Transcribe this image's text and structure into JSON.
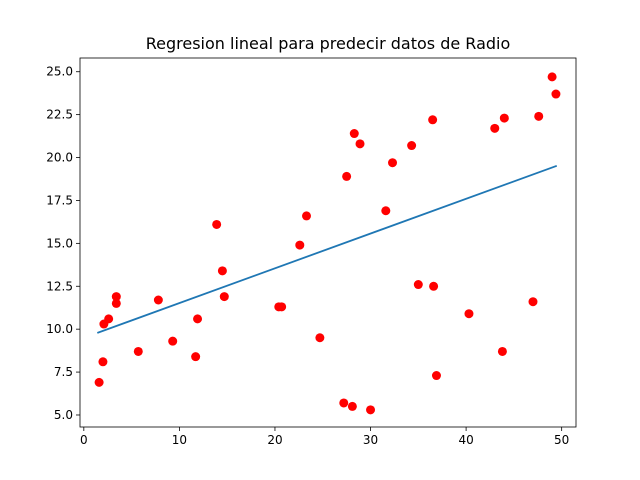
{
  "chart_data": {
    "type": "scatter",
    "title": "Regresion lineal para predecir datos de Radio",
    "xlabel": "",
    "ylabel": "",
    "xlim": [
      -0.4,
      51.5
    ],
    "ylim": [
      4.3,
      25.8
    ],
    "x_ticks": [
      0,
      10,
      20,
      30,
      40,
      50
    ],
    "y_ticks": [
      5.0,
      7.5,
      10.0,
      12.5,
      15.0,
      17.5,
      20.0,
      22.5,
      25.0
    ],
    "x_tick_labels": [
      "0",
      "10",
      "20",
      "30",
      "40",
      "50"
    ],
    "y_tick_labels": [
      "5.0",
      "7.5",
      "10.0",
      "12.5",
      "15.0",
      "17.5",
      "20.0",
      "22.5",
      "25.0"
    ],
    "grid": false,
    "series": [
      {
        "kind": "points",
        "color": "#ff0000",
        "points": [
          [
            1.6,
            6.9
          ],
          [
            2.0,
            8.1
          ],
          [
            2.1,
            10.3
          ],
          [
            2.6,
            10.6
          ],
          [
            3.4,
            11.5
          ],
          [
            3.4,
            11.9
          ],
          [
            5.7,
            8.7
          ],
          [
            7.8,
            11.7
          ],
          [
            9.3,
            9.3
          ],
          [
            11.7,
            8.4
          ],
          [
            11.9,
            10.6
          ],
          [
            13.9,
            16.1
          ],
          [
            14.5,
            13.4
          ],
          [
            14.7,
            11.9
          ],
          [
            20.4,
            11.3
          ],
          [
            20.7,
            11.3
          ],
          [
            22.6,
            14.9
          ],
          [
            23.3,
            16.6
          ],
          [
            24.7,
            9.5
          ],
          [
            27.2,
            5.7
          ],
          [
            27.5,
            18.9
          ],
          [
            28.1,
            5.5
          ],
          [
            28.3,
            21.4
          ],
          [
            28.9,
            20.8
          ],
          [
            30.0,
            5.3
          ],
          [
            31.6,
            16.9
          ],
          [
            32.3,
            19.7
          ],
          [
            34.3,
            20.7
          ],
          [
            35.0,
            12.6
          ],
          [
            36.5,
            22.2
          ],
          [
            36.6,
            12.5
          ],
          [
            36.9,
            7.3
          ],
          [
            40.3,
            10.9
          ],
          [
            43.0,
            21.7
          ],
          [
            43.8,
            8.7
          ],
          [
            44.0,
            22.3
          ],
          [
            47.0,
            11.6
          ],
          [
            47.6,
            22.4
          ],
          [
            49.0,
            24.7
          ],
          [
            49.4,
            23.7
          ]
        ]
      },
      {
        "kind": "regression-line",
        "color": "#1f77b4",
        "points": [
          [
            1.5,
            9.8
          ],
          [
            49.4,
            19.5
          ]
        ]
      }
    ]
  }
}
